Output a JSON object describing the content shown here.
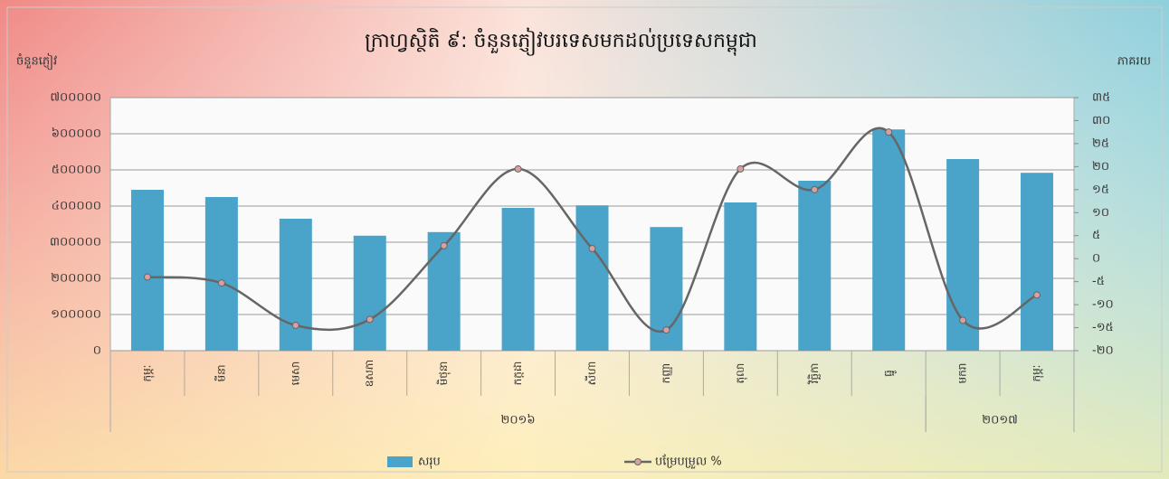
{
  "chart_data": {
    "type": "bar_line",
    "title": "ក្រាហ្វស្ថិតិ ៩: ចំនួនភ្ញៀវបរទេសមកដល់ប្រទេសកម្ពុជា",
    "y_label": "ចំនួនភ្ញៀវ",
    "y2_label": "ភាគរយ",
    "categories": [
      "កុម្ភៈ",
      "មីនា",
      "មេសា",
      "ឧសភា",
      "មិថុនា",
      "កក្កដា",
      "សីហា",
      "កញ្ញា",
      "តុលា",
      "វិច្ឆិកា",
      "ធ្នូ",
      "មករា",
      "កុម្ភៈ"
    ],
    "groups": [
      {
        "name": "២០១៦",
        "count": 11
      },
      {
        "name": "២០១៧",
        "count": 2
      }
    ],
    "series": [
      {
        "name": "សរុប",
        "type": "bar",
        "color": "#4aa3c8",
        "values": [
          445000,
          425000,
          365000,
          318000,
          328000,
          395000,
          402000,
          342000,
          410000,
          470000,
          612000,
          530000,
          492000
        ]
      },
      {
        "name": "បម្រែបម្រួល %",
        "type": "line",
        "axis": "y2",
        "color": "#666666",
        "values": [
          -4,
          -5.3,
          -14.5,
          -13.2,
          2.8,
          19.5,
          2.2,
          -15.5,
          19.5,
          15,
          27.5,
          -13.4,
          -7.9
        ]
      }
    ],
    "ylim": [
      0,
      700000
    ],
    "yticks": [
      {
        "value": 0,
        "label": "០"
      },
      {
        "value": 100000,
        "label": "១០០០០០"
      },
      {
        "value": 200000,
        "label": "២០០០០០"
      },
      {
        "value": 300000,
        "label": "៣០០០០០"
      },
      {
        "value": 400000,
        "label": "៤០០០០០"
      },
      {
        "value": 500000,
        "label": "៥០០០០០"
      },
      {
        "value": 600000,
        "label": "៦០០០០០"
      },
      {
        "value": 700000,
        "label": "៧០០០០០"
      }
    ],
    "y2lim": [
      -20,
      35
    ],
    "y2ticks": [
      {
        "value": -20,
        "label": "-២០"
      },
      {
        "value": -15,
        "label": "-១៥"
      },
      {
        "value": -10,
        "label": "-១០"
      },
      {
        "value": -5,
        "label": "-៥"
      },
      {
        "value": 0,
        "label": "០"
      },
      {
        "value": 5,
        "label": "៥"
      },
      {
        "value": 10,
        "label": "១០"
      },
      {
        "value": 15,
        "label": "១៥"
      },
      {
        "value": 20,
        "label": "២០"
      },
      {
        "value": 25,
        "label": "២៥"
      },
      {
        "value": 30,
        "label": "៣០"
      },
      {
        "value": 35,
        "label": "៣៥"
      }
    ],
    "grid": true,
    "legend": "bottom"
  }
}
